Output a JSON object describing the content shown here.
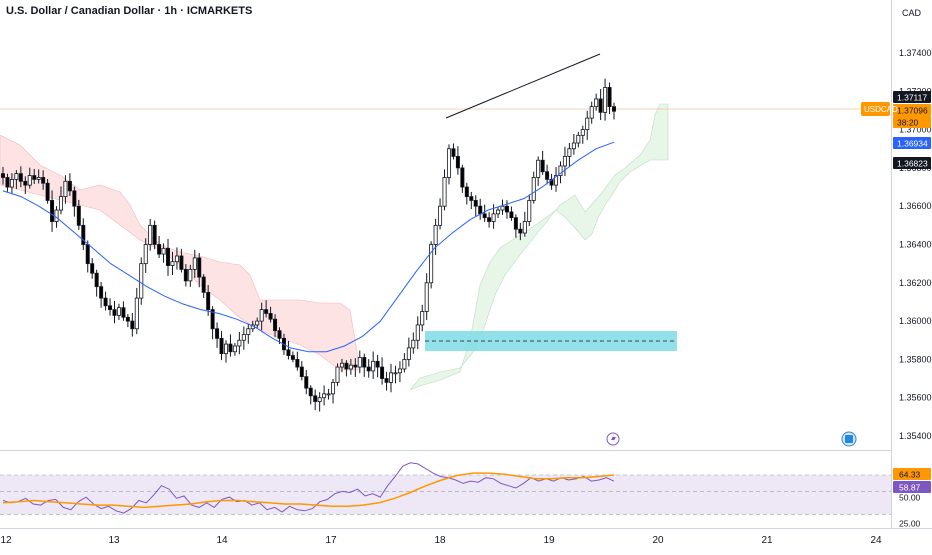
{
  "header": {
    "title": "U.S. Dollar / Canadian Dollar · 1h · ICMARKETS",
    "currency": "CAD"
  },
  "symbol_tag": "USDCAD",
  "colors": {
    "up": "#26a69a",
    "down": "#000000",
    "candle_outline": "#000000",
    "ma": "#2962ff",
    "cloud_bull": "#e8f5e9",
    "cloud_bear": "#fde3e3",
    "zone": "#7fdbe6",
    "rsi": "#7e57c2",
    "rsi_ma": "#ff9800",
    "rsi_band": "#ede7f6",
    "price_line": "#ff9800"
  },
  "icons": [
    "lightning-icon",
    "calendar-event-icon"
  ],
  "chart_data": [
    {
      "type": "candlestick",
      "title": "U.S. Dollar / Canadian Dollar · 1h · ICMARKETS",
      "ylim": [
        1.353,
        1.376
      ],
      "yticks": [
        "1.37400",
        "1.37200",
        "1.37000",
        "1.36800",
        "1.36600",
        "1.36400",
        "1.36200",
        "1.36000",
        "1.35800",
        "1.35600",
        "1.35400"
      ],
      "xticks": [
        "12",
        "13",
        "14",
        "17",
        "18",
        "19",
        "20",
        "21",
        "24"
      ],
      "price_labels": [
        {
          "text": "1.37117",
          "value": 1.37117,
          "style": "dark"
        },
        {
          "text": "1.37096",
          "value": 1.37096,
          "style": "orange"
        },
        {
          "text": "38:20",
          "value": 1.3703,
          "style": "orange"
        },
        {
          "text": "1.36934",
          "value": 1.36934,
          "style": "blue"
        },
        {
          "text": "1.36823",
          "value": 1.36823,
          "style": "dark"
        }
      ],
      "current_price": 1.37096,
      "zone": {
        "top": 1.35945,
        "bottom": 1.3584,
        "midline": 1.35895
      },
      "trendline": {
        "start": 1.3702,
        "end": 1.37385
      },
      "candles_close": [
        1.3675,
        1.367,
        1.3674,
        1.3677,
        1.3673,
        1.3671,
        1.3676,
        1.3674,
        1.3675,
        1.3672,
        1.3663,
        1.3652,
        1.3658,
        1.3665,
        1.3673,
        1.3668,
        1.366,
        1.365,
        1.364,
        1.363,
        1.3625,
        1.3618,
        1.3612,
        1.3608,
        1.3606,
        1.3603,
        1.3607,
        1.3602,
        1.36,
        1.3596,
        1.3612,
        1.363,
        1.364,
        1.365,
        1.364,
        1.3635,
        1.3638,
        1.3629,
        1.3631,
        1.3634,
        1.3627,
        1.3621,
        1.3627,
        1.3633,
        1.3623,
        1.3615,
        1.3606,
        1.3596,
        1.3591,
        1.3583,
        1.3588,
        1.3584,
        1.3587,
        1.359,
        1.3593,
        1.3596,
        1.3598,
        1.36,
        1.3606,
        1.3604,
        1.3601,
        1.3595,
        1.3591,
        1.3585,
        1.3582,
        1.358,
        1.3576,
        1.3571,
        1.3565,
        1.3561,
        1.3558,
        1.356,
        1.3562,
        1.3562,
        1.3568,
        1.3576,
        1.3578,
        1.3575,
        1.3577,
        1.3576,
        1.3581,
        1.3576,
        1.3574,
        1.3579,
        1.3576,
        1.357,
        1.3568,
        1.3573,
        1.3573,
        1.3575,
        1.358,
        1.3586,
        1.359,
        1.3598,
        1.3605,
        1.362,
        1.364,
        1.365,
        1.366,
        1.3675,
        1.369,
        1.3686,
        1.368,
        1.367,
        1.3665,
        1.3663,
        1.366,
        1.3656,
        1.3654,
        1.3652,
        1.3656,
        1.3658,
        1.366,
        1.3657,
        1.3654,
        1.3648,
        1.3646,
        1.3652,
        1.3663,
        1.3675,
        1.3684,
        1.3678,
        1.3674,
        1.3671,
        1.3676,
        1.3681,
        1.3686,
        1.369,
        1.3693,
        1.3697,
        1.37,
        1.3706,
        1.3712,
        1.3716,
        1.3709,
        1.3722,
        1.3712,
        1.37096
      ],
      "ma_values": [
        1.3668,
        1.3665,
        1.366,
        1.3654,
        1.3646,
        1.3638,
        1.363,
        1.3624,
        1.3618,
        1.3613,
        1.3609,
        1.3606,
        1.3604,
        1.3601,
        1.3597,
        1.3591,
        1.3586,
        1.3584,
        1.3584,
        1.3587,
        1.3592,
        1.36,
        1.3613,
        1.3626,
        1.3638,
        1.3646,
        1.3653,
        1.3658,
        1.3661,
        1.3664,
        1.367,
        1.3677,
        1.3684,
        1.369,
        1.36934
      ],
      "rsi": {
        "levels": [
          "64.33",
          "58.87",
          "50.00",
          "25.00"
        ],
        "ylim": [
          20,
          80
        ],
        "rsi_value": 58.87,
        "rsi_ma_value": 64.33,
        "values": [
          42,
          40,
          41,
          44,
          39,
          38,
          42,
          43,
          36,
          34,
          41,
          45,
          39,
          35,
          37,
          33,
          31,
          35,
          42,
          40,
          47,
          55,
          52,
          44,
          46,
          38,
          36,
          40,
          36,
          43,
          45,
          41,
          42,
          38,
          40,
          34,
          36,
          32,
          37,
          34,
          33,
          35,
          41,
          43,
          48,
          50,
          49,
          52,
          46,
          48,
          45,
          55,
          63,
          72,
          75,
          74,
          70,
          66,
          63,
          62,
          60,
          57,
          59,
          58,
          62,
          61,
          57,
          55,
          53,
          57,
          62,
          59,
          61,
          59,
          62,
          60,
          61,
          63,
          59,
          60,
          62,
          58.87
        ],
        "ma_values": [
          40,
          41,
          42,
          41,
          40,
          39,
          38,
          38,
          37,
          36,
          37,
          38,
          39,
          41,
          42,
          42,
          41,
          40,
          39,
          39,
          38,
          37,
          37,
          38,
          40,
          44,
          49,
          55,
          60,
          64,
          66,
          66,
          65,
          63,
          61,
          61,
          62,
          62,
          63,
          64.33
        ]
      }
    }
  ]
}
